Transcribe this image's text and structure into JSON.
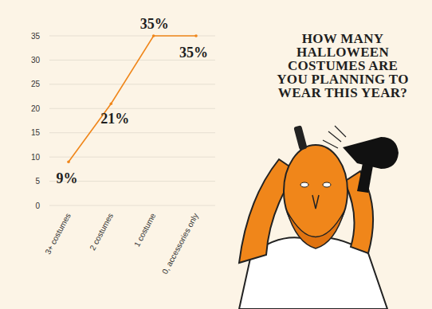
{
  "chart_data": {
    "type": "line",
    "title": "HOW MANY HALLOWEEN COSTUMES ARE YOU PLANNING TO WEAR THIS YEAR?",
    "categories": [
      "3+ costumes",
      "2 costumes",
      "1 costume",
      "0, accessories only"
    ],
    "values": [
      9,
      21,
      35,
      35
    ],
    "value_labels": [
      "9%",
      "21%",
      "35%",
      "35%"
    ],
    "color": "#f0861a",
    "ylim": [
      0,
      35
    ],
    "yticks": [
      0,
      5,
      10,
      15,
      20,
      25,
      30,
      35
    ],
    "grid": true,
    "data_labels": true
  }
}
